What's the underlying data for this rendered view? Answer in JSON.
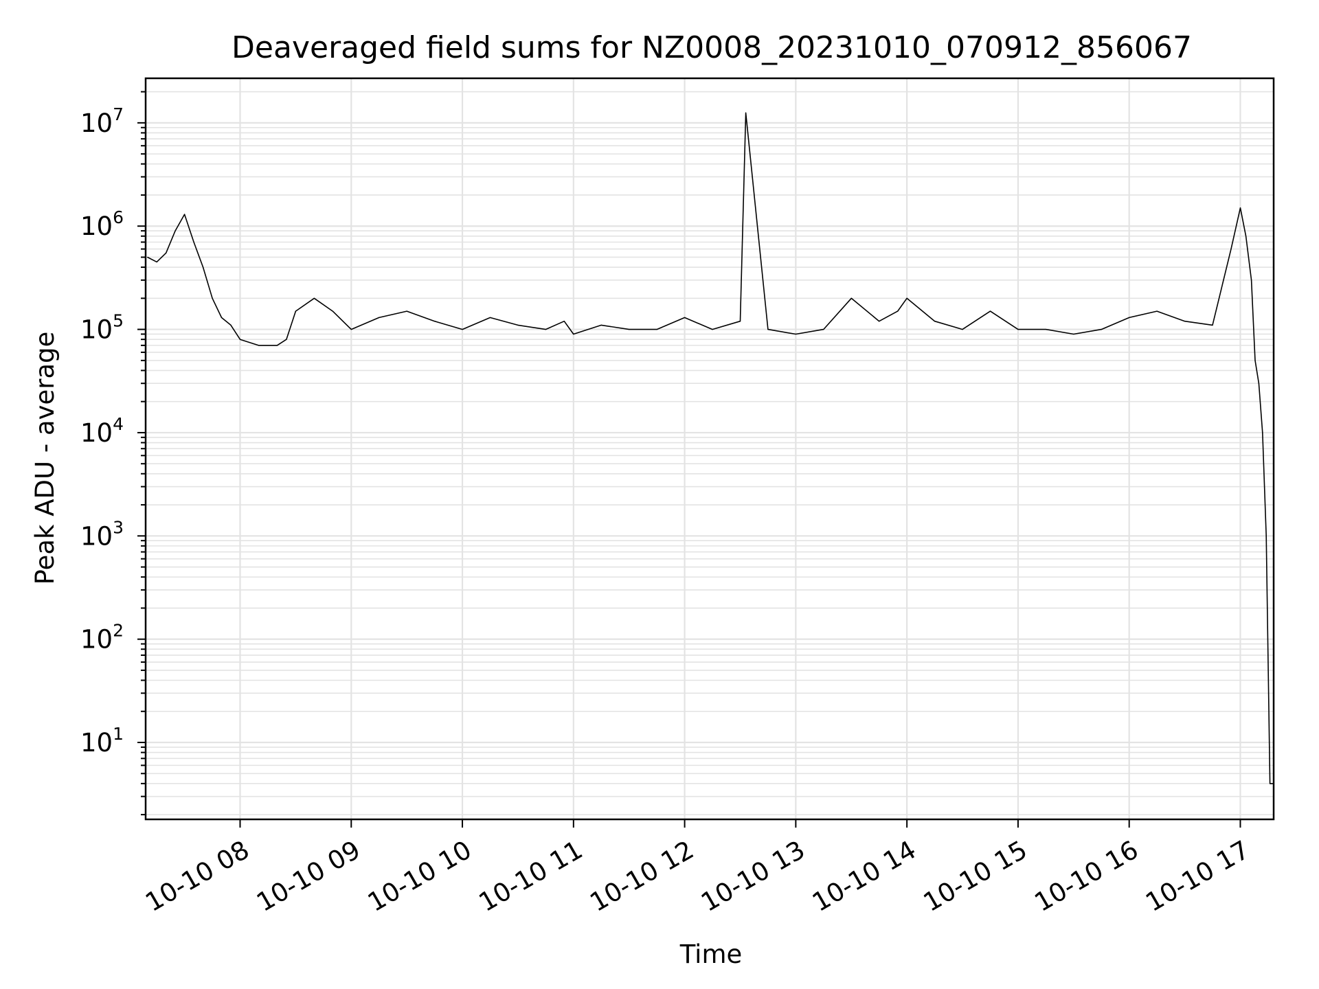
{
  "chart_data": {
    "type": "line",
    "title": "Deaveraged field sums for NZ0008_20231010_070912_856067",
    "xlabel": "Time",
    "ylabel": "Peak ADU - average",
    "x_tick_labels": [
      "10-10 08",
      "10-10 09",
      "10-10 10",
      "10-10 11",
      "10-10 12",
      "10-10 13",
      "10-10 14",
      "10-10 15",
      "10-10 16",
      "10-10 17"
    ],
    "y_tick_labels": [
      {
        "base": "10",
        "exp": "1"
      },
      {
        "base": "10",
        "exp": "2"
      },
      {
        "base": "10",
        "exp": "3"
      },
      {
        "base": "10",
        "exp": "4"
      },
      {
        "base": "10",
        "exp": "5"
      },
      {
        "base": "10",
        "exp": "6"
      },
      {
        "base": "10",
        "exp": "7"
      }
    ],
    "x_range": [
      "2023-10-10 07:09",
      "2023-10-10 17:18"
    ],
    "y_scale": "log",
    "ylim": [
      1.8,
      27000000
    ],
    "grid": "major and minor",
    "line_color": "#000000",
    "grid_color": "#e3e3e3",
    "series": [
      {
        "x": [
          "2023-10-10 07:10",
          "2023-10-10 07:15",
          "2023-10-10 07:20",
          "2023-10-10 07:25",
          "2023-10-10 07:30",
          "2023-10-10 07:35",
          "2023-10-10 07:40",
          "2023-10-10 07:45",
          "2023-10-10 07:50",
          "2023-10-10 07:55",
          "2023-10-10 08:00",
          "2023-10-10 08:10",
          "2023-10-10 08:20",
          "2023-10-10 08:25",
          "2023-10-10 08:30",
          "2023-10-10 08:40",
          "2023-10-10 08:50",
          "2023-10-10 09:00",
          "2023-10-10 09:15",
          "2023-10-10 09:30",
          "2023-10-10 09:45",
          "2023-10-10 10:00",
          "2023-10-10 10:15",
          "2023-10-10 10:30",
          "2023-10-10 10:45",
          "2023-10-10 10:55",
          "2023-10-10 11:00",
          "2023-10-10 11:15",
          "2023-10-10 11:30",
          "2023-10-10 11:45",
          "2023-10-10 12:00",
          "2023-10-10 12:15",
          "2023-10-10 12:30",
          "2023-10-10 12:33",
          "2023-10-10 12:45",
          "2023-10-10 13:00",
          "2023-10-10 13:15",
          "2023-10-10 13:30",
          "2023-10-10 13:45",
          "2023-10-10 13:55",
          "2023-10-10 14:00",
          "2023-10-10 14:15",
          "2023-10-10 14:30",
          "2023-10-10 14:45",
          "2023-10-10 15:00",
          "2023-10-10 15:15",
          "2023-10-10 15:30",
          "2023-10-10 15:45",
          "2023-10-10 16:00",
          "2023-10-10 16:15",
          "2023-10-10 16:30",
          "2023-10-10 16:45",
          "2023-10-10 16:55",
          "2023-10-10 17:00",
          "2023-10-10 17:03",
          "2023-10-10 17:06",
          "2023-10-10 17:08",
          "2023-10-10 17:10",
          "2023-10-10 17:12",
          "2023-10-10 17:14",
          "2023-10-10 17:16",
          "2023-10-10 17:18"
        ],
        "y": [
          500000,
          450000,
          550000,
          900000,
          1300000,
          700000,
          400000,
          200000,
          130000,
          110000,
          80000,
          70000,
          70000,
          80000,
          150000,
          200000,
          150000,
          100000,
          130000,
          150000,
          120000,
          100000,
          130000,
          110000,
          100000,
          120000,
          90000,
          110000,
          100000,
          100000,
          130000,
          100000,
          120000,
          12500000,
          100000,
          90000,
          100000,
          200000,
          120000,
          150000,
          200000,
          120000,
          100000,
          150000,
          100000,
          100000,
          90000,
          100000,
          130000,
          150000,
          120000,
          110000,
          600000,
          1500000,
          800000,
          300000,
          50000,
          30000,
          10000,
          1000,
          4,
          4
        ]
      }
    ]
  }
}
